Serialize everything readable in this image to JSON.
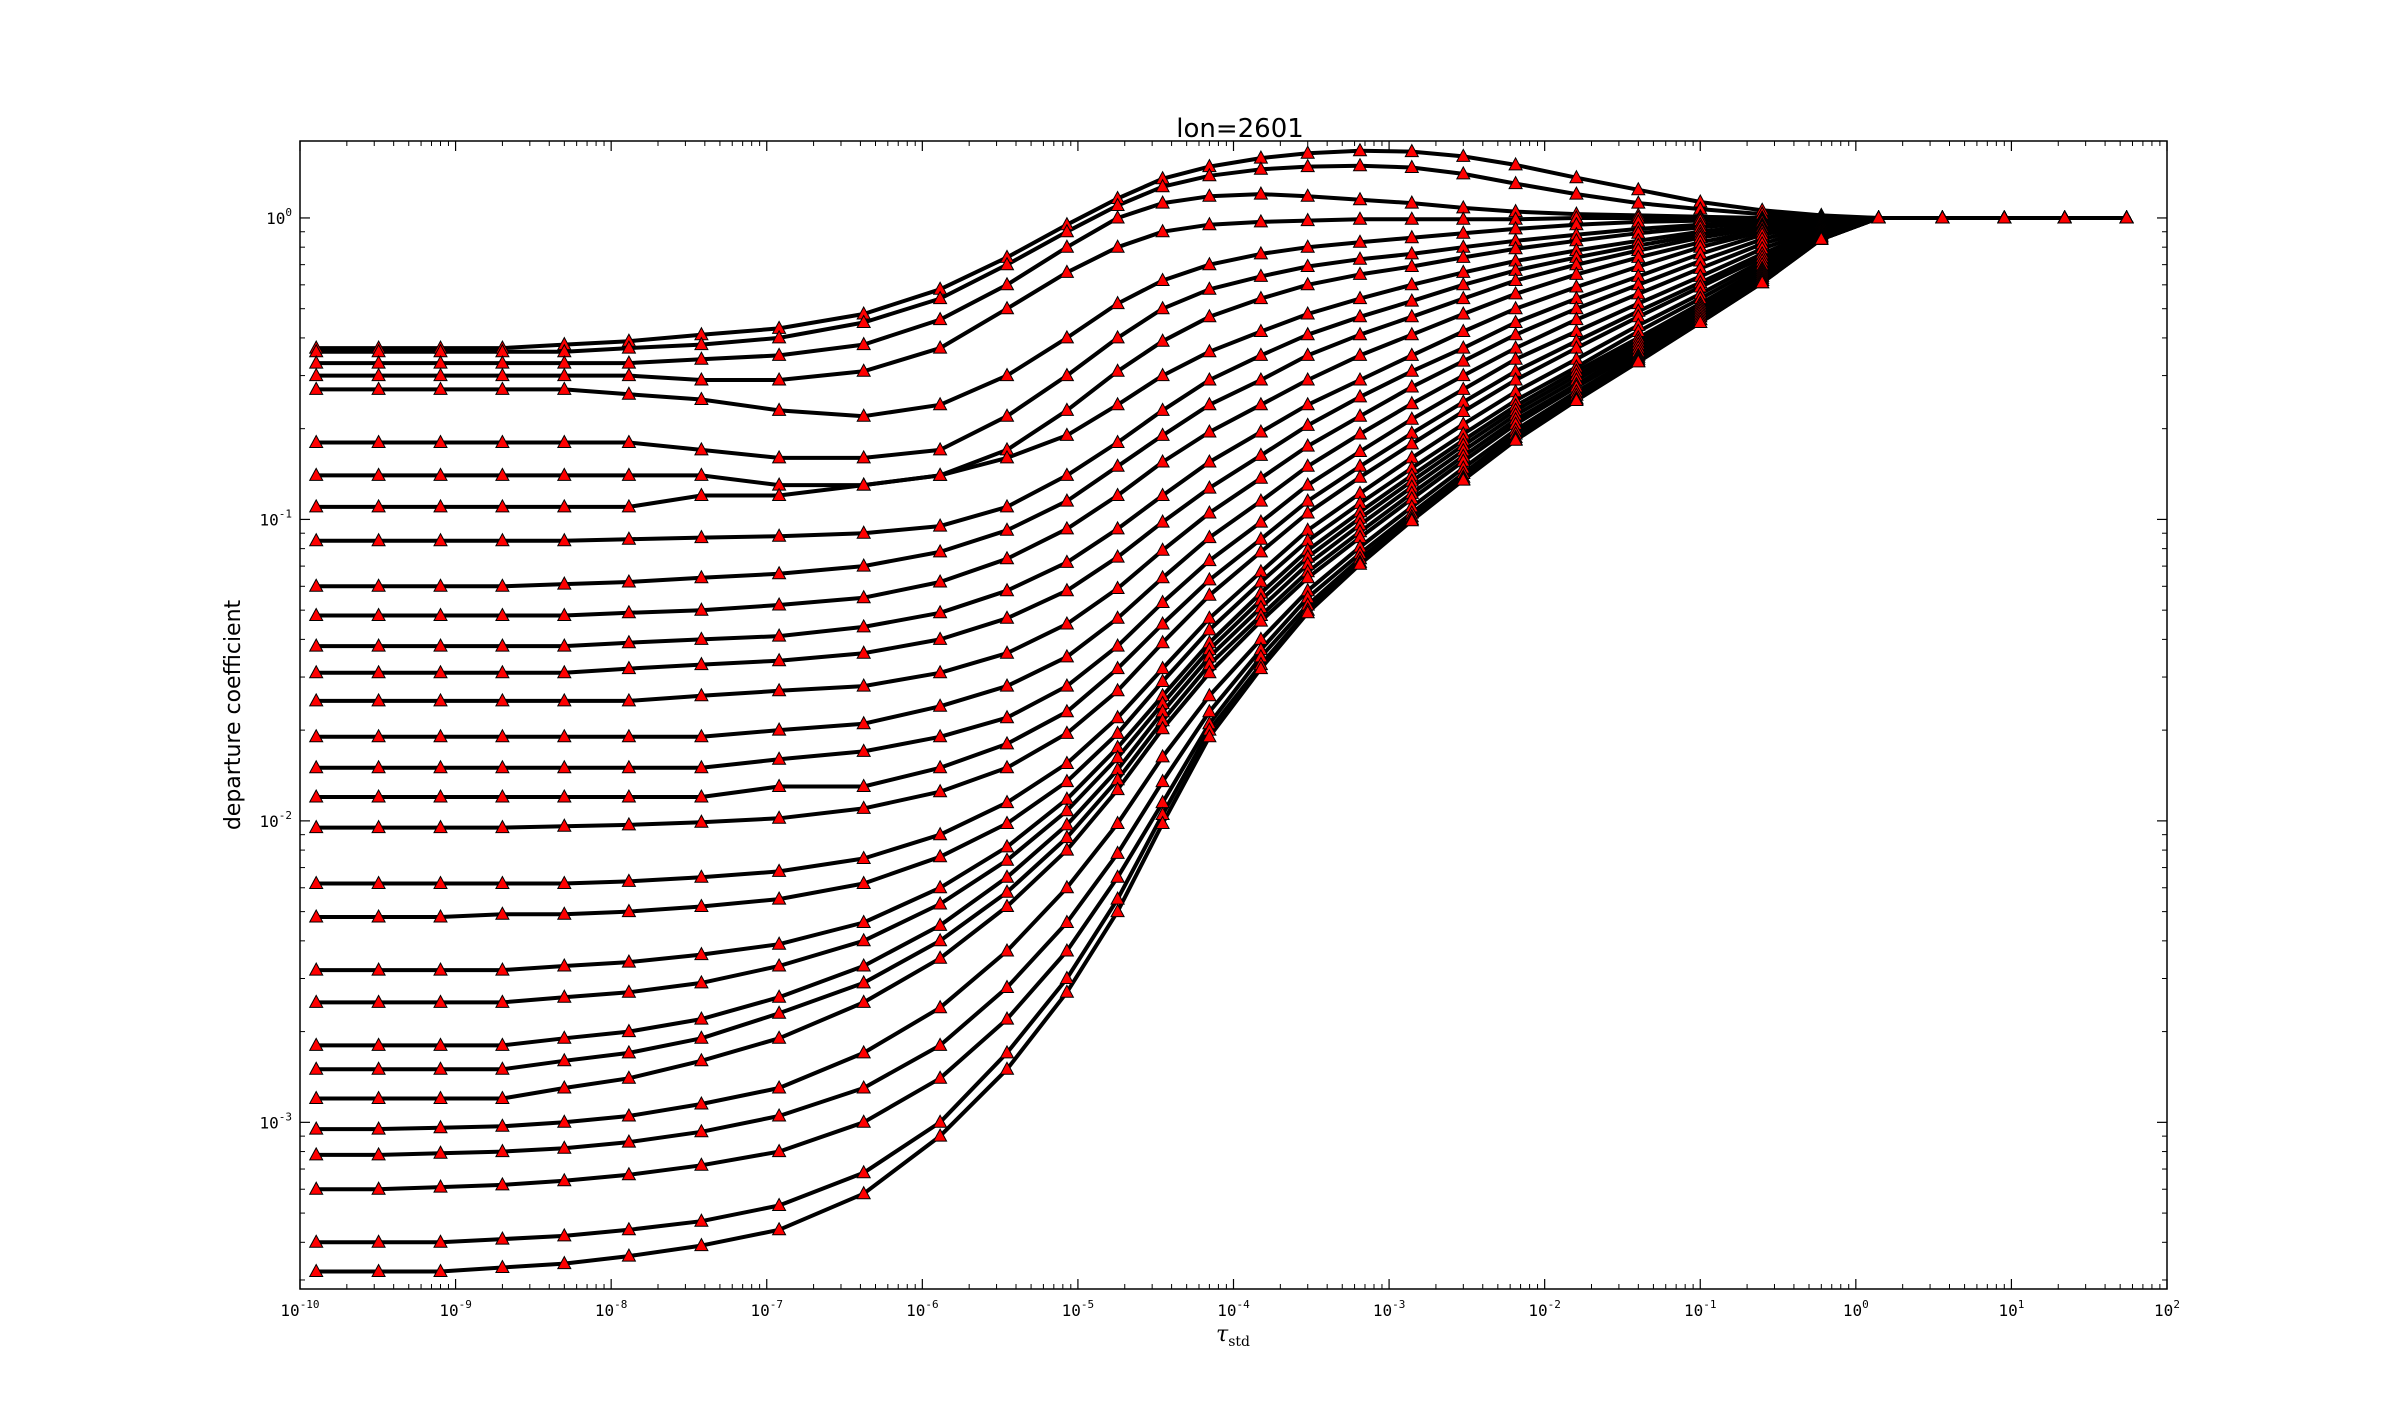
{
  "chart_data": {
    "type": "line",
    "title": "lon=2601",
    "xlabel": "τ",
    "xlabel_subscript": "std",
    "ylabel": "departure coefficient",
    "xscale": "log",
    "yscale": "log",
    "xlim": [
      1e-10,
      100
    ],
    "ylim": [
      0.00028,
      1.8
    ],
    "x_tick_labels": [
      {
        "base": "10",
        "exp": "-10"
      },
      {
        "base": "10",
        "exp": "-9"
      },
      {
        "base": "10",
        "exp": "-8"
      },
      {
        "base": "10",
        "exp": "-7"
      },
      {
        "base": "10",
        "exp": "-6"
      },
      {
        "base": "10",
        "exp": "-5"
      },
      {
        "base": "10",
        "exp": "-4"
      },
      {
        "base": "10",
        "exp": "-3"
      },
      {
        "base": "10",
        "exp": "-2"
      },
      {
        "base": "10",
        "exp": "-1"
      },
      {
        "base": "10",
        "exp": "0"
      },
      {
        "base": "10",
        "exp": "1"
      },
      {
        "base": "10",
        "exp": "2"
      }
    ],
    "y_tick_labels": [
      {
        "base": "10",
        "exp": "-3"
      },
      {
        "base": "10",
        "exp": "-2"
      },
      {
        "base": "10",
        "exp": "-1"
      },
      {
        "base": "10",
        "exp": "0"
      }
    ],
    "line_color": "#000000",
    "marker": "triangle",
    "marker_color": "#ff0000",
    "marker_edge_color": "#000000",
    "x": [
      1.27e-10,
      3.2e-10,
      8e-10,
      2e-09,
      5e-09,
      1.3e-08,
      3.8e-08,
      1.2e-07,
      4.2e-07,
      1.3e-06,
      3.5e-06,
      8.5e-06,
      1.8e-05,
      3.5e-05,
      7e-05,
      0.00015,
      0.0003,
      0.00065,
      0.0014,
      0.003,
      0.0065,
      0.016,
      0.04,
      0.1,
      0.25,
      0.6,
      1.4,
      3.6,
      9,
      22,
      55
    ],
    "series": [
      {
        "values": [
          0.37,
          0.37,
          0.37,
          0.37,
          0.38,
          0.39,
          0.41,
          0.43,
          0.48,
          0.58,
          0.74,
          0.95,
          1.16,
          1.35,
          1.48,
          1.58,
          1.64,
          1.67,
          1.66,
          1.6,
          1.5,
          1.36,
          1.24,
          1.13,
          1.06,
          1.02,
          1.0,
          1.0,
          1.0,
          1.0,
          1.0
        ]
      },
      {
        "values": [
          0.36,
          0.36,
          0.36,
          0.36,
          0.36,
          0.37,
          0.38,
          0.4,
          0.45,
          0.54,
          0.7,
          0.9,
          1.1,
          1.27,
          1.38,
          1.45,
          1.48,
          1.49,
          1.47,
          1.4,
          1.3,
          1.2,
          1.12,
          1.07,
          1.03,
          1.01,
          1.0,
          1.0,
          1.0,
          1.0,
          1.0
        ]
      },
      {
        "values": [
          0.33,
          0.33,
          0.33,
          0.33,
          0.33,
          0.33,
          0.34,
          0.35,
          0.38,
          0.46,
          0.6,
          0.8,
          1.0,
          1.12,
          1.18,
          1.2,
          1.18,
          1.15,
          1.12,
          1.08,
          1.05,
          1.03,
          1.02,
          1.01,
          1.0,
          1.0,
          1.0,
          1.0,
          1.0,
          1.0,
          1.0
        ]
      },
      {
        "values": [
          0.3,
          0.3,
          0.3,
          0.3,
          0.3,
          0.3,
          0.29,
          0.29,
          0.31,
          0.37,
          0.5,
          0.66,
          0.8,
          0.9,
          0.95,
          0.97,
          0.98,
          0.99,
          0.99,
          0.99,
          0.99,
          1.0,
          1.0,
          1.0,
          1.0,
          1.0,
          1.0,
          1.0,
          1.0,
          1.0,
          1.0
        ]
      },
      {
        "values": [
          0.27,
          0.27,
          0.27,
          0.27,
          0.27,
          0.26,
          0.25,
          0.23,
          0.22,
          0.24,
          0.3,
          0.4,
          0.52,
          0.62,
          0.7,
          0.76,
          0.8,
          0.83,
          0.86,
          0.89,
          0.92,
          0.95,
          0.97,
          0.98,
          0.99,
          1.0,
          1.0,
          1.0,
          1.0,
          1.0,
          1.0
        ]
      },
      {
        "values": [
          0.18,
          0.18,
          0.18,
          0.18,
          0.18,
          0.18,
          0.17,
          0.16,
          0.16,
          0.17,
          0.22,
          0.3,
          0.4,
          0.5,
          0.58,
          0.64,
          0.69,
          0.73,
          0.76,
          0.8,
          0.84,
          0.88,
          0.92,
          0.95,
          0.98,
          0.99,
          1.0,
          1.0,
          1.0,
          1.0,
          1.0
        ]
      },
      {
        "values": [
          0.14,
          0.14,
          0.14,
          0.14,
          0.14,
          0.14,
          0.14,
          0.13,
          0.13,
          0.14,
          0.17,
          0.23,
          0.31,
          0.39,
          0.47,
          0.54,
          0.6,
          0.65,
          0.69,
          0.74,
          0.79,
          0.84,
          0.89,
          0.93,
          0.97,
          0.99,
          1.0,
          1.0,
          1.0,
          1.0,
          1.0
        ]
      },
      {
        "values": [
          0.11,
          0.11,
          0.11,
          0.11,
          0.11,
          0.11,
          0.12,
          0.12,
          0.13,
          0.14,
          0.16,
          0.19,
          0.24,
          0.3,
          0.36,
          0.42,
          0.48,
          0.54,
          0.6,
          0.66,
          0.72,
          0.78,
          0.84,
          0.9,
          0.95,
          0.98,
          1.0,
          1.0,
          1.0,
          1.0,
          1.0
        ]
      },
      {
        "values": [
          0.085,
          0.085,
          0.085,
          0.085,
          0.085,
          0.086,
          0.087,
          0.088,
          0.09,
          0.095,
          0.11,
          0.14,
          0.18,
          0.23,
          0.29,
          0.35,
          0.41,
          0.47,
          0.53,
          0.6,
          0.67,
          0.74,
          0.81,
          0.88,
          0.94,
          0.98,
          1.0,
          1.0,
          1.0,
          1.0,
          1.0
        ]
      },
      {
        "values": [
          0.06,
          0.06,
          0.06,
          0.06,
          0.061,
          0.062,
          0.064,
          0.066,
          0.07,
          0.078,
          0.092,
          0.115,
          0.15,
          0.19,
          0.24,
          0.29,
          0.35,
          0.41,
          0.47,
          0.54,
          0.62,
          0.7,
          0.78,
          0.86,
          0.93,
          0.97,
          1.0,
          1.0,
          1.0,
          1.0,
          1.0
        ]
      },
      {
        "values": [
          0.048,
          0.048,
          0.048,
          0.048,
          0.048,
          0.049,
          0.05,
          0.052,
          0.055,
          0.062,
          0.074,
          0.093,
          0.12,
          0.155,
          0.195,
          0.24,
          0.29,
          0.35,
          0.41,
          0.48,
          0.56,
          0.65,
          0.74,
          0.83,
          0.91,
          0.97,
          1.0,
          1.0,
          1.0,
          1.0,
          1.0
        ]
      },
      {
        "values": [
          0.038,
          0.038,
          0.038,
          0.038,
          0.038,
          0.039,
          0.04,
          0.041,
          0.044,
          0.049,
          0.058,
          0.072,
          0.093,
          0.12,
          0.155,
          0.195,
          0.24,
          0.29,
          0.35,
          0.42,
          0.5,
          0.59,
          0.69,
          0.8,
          0.9,
          0.96,
          1.0,
          1.0,
          1.0,
          1.0,
          1.0
        ]
      },
      {
        "values": [
          0.031,
          0.031,
          0.031,
          0.031,
          0.031,
          0.032,
          0.033,
          0.034,
          0.036,
          0.04,
          0.047,
          0.058,
          0.075,
          0.098,
          0.127,
          0.163,
          0.205,
          0.255,
          0.31,
          0.37,
          0.45,
          0.54,
          0.64,
          0.76,
          0.88,
          0.96,
          1.0,
          1.0,
          1.0,
          1.0,
          1.0
        ]
      },
      {
        "values": [
          0.025,
          0.025,
          0.025,
          0.025,
          0.025,
          0.025,
          0.026,
          0.027,
          0.028,
          0.031,
          0.036,
          0.045,
          0.059,
          0.079,
          0.105,
          0.137,
          0.175,
          0.22,
          0.275,
          0.335,
          0.41,
          0.5,
          0.6,
          0.72,
          0.85,
          0.95,
          1.0,
          1.0,
          1.0,
          1.0,
          1.0
        ]
      },
      {
        "values": [
          0.019,
          0.019,
          0.019,
          0.019,
          0.019,
          0.019,
          0.019,
          0.02,
          0.021,
          0.024,
          0.028,
          0.035,
          0.047,
          0.064,
          0.087,
          0.115,
          0.15,
          0.192,
          0.242,
          0.3,
          0.37,
          0.46,
          0.56,
          0.68,
          0.82,
          0.94,
          1.0,
          1.0,
          1.0,
          1.0,
          1.0
        ]
      },
      {
        "values": [
          0.015,
          0.015,
          0.015,
          0.015,
          0.015,
          0.015,
          0.015,
          0.016,
          0.017,
          0.019,
          0.022,
          0.028,
          0.038,
          0.053,
          0.073,
          0.098,
          0.13,
          0.168,
          0.215,
          0.27,
          0.34,
          0.42,
          0.52,
          0.64,
          0.79,
          0.93,
          1.0,
          1.0,
          1.0,
          1.0,
          1.0
        ]
      },
      {
        "values": [
          0.012,
          0.012,
          0.012,
          0.012,
          0.012,
          0.012,
          0.012,
          0.013,
          0.013,
          0.015,
          0.018,
          0.023,
          0.032,
          0.045,
          0.063,
          0.086,
          0.115,
          0.15,
          0.193,
          0.245,
          0.31,
          0.39,
          0.49,
          0.61,
          0.76,
          0.92,
          1.0,
          1.0,
          1.0,
          1.0,
          1.0
        ]
      },
      {
        "values": [
          0.0095,
          0.0095,
          0.0095,
          0.0095,
          0.0096,
          0.0097,
          0.0099,
          0.0102,
          0.011,
          0.0125,
          0.015,
          0.0195,
          0.027,
          0.039,
          0.056,
          0.078,
          0.105,
          0.138,
          0.178,
          0.228,
          0.29,
          0.37,
          0.47,
          0.59,
          0.74,
          0.91,
          1.0,
          1.0,
          1.0,
          1.0,
          1.0
        ]
      },
      {
        "values": [
          0.0062,
          0.0062,
          0.0062,
          0.0062,
          0.0062,
          0.0063,
          0.0065,
          0.0068,
          0.0075,
          0.009,
          0.0115,
          0.0155,
          0.022,
          0.032,
          0.047,
          0.067,
          0.092,
          0.122,
          0.16,
          0.207,
          0.265,
          0.34,
          0.44,
          0.56,
          0.72,
          0.9,
          1.0,
          1.0,
          1.0,
          1.0,
          1.0
        ]
      },
      {
        "values": [
          0.0048,
          0.0048,
          0.0048,
          0.0049,
          0.0049,
          0.005,
          0.0052,
          0.0055,
          0.0062,
          0.0076,
          0.0098,
          0.0135,
          0.0195,
          0.029,
          0.043,
          0.062,
          0.085,
          0.113,
          0.148,
          0.192,
          0.248,
          0.32,
          0.42,
          0.54,
          0.7,
          0.89,
          1.0,
          1.0,
          1.0,
          1.0,
          1.0
        ]
      },
      {
        "values": [
          0.0032,
          0.0032,
          0.0032,
          0.0032,
          0.0033,
          0.0034,
          0.0036,
          0.0039,
          0.0046,
          0.006,
          0.0082,
          0.0118,
          0.0175,
          0.026,
          0.039,
          0.057,
          0.079,
          0.106,
          0.14,
          0.183,
          0.238,
          0.31,
          0.4,
          0.52,
          0.68,
          0.88,
          1.0,
          1.0,
          1.0,
          1.0,
          1.0
        ]
      },
      {
        "values": [
          0.0025,
          0.0025,
          0.0025,
          0.0025,
          0.0026,
          0.0027,
          0.0029,
          0.0033,
          0.004,
          0.0053,
          0.0074,
          0.0108,
          0.0162,
          0.0245,
          0.037,
          0.054,
          0.075,
          0.101,
          0.134,
          0.176,
          0.23,
          0.3,
          0.39,
          0.51,
          0.67,
          0.87,
          1.0,
          1.0,
          1.0,
          1.0,
          1.0
        ]
      },
      {
        "values": [
          0.0018,
          0.0018,
          0.0018,
          0.0018,
          0.0019,
          0.002,
          0.0022,
          0.0026,
          0.0033,
          0.0045,
          0.0065,
          0.0097,
          0.0148,
          0.023,
          0.035,
          0.051,
          0.071,
          0.096,
          0.128,
          0.169,
          0.222,
          0.29,
          0.38,
          0.5,
          0.66,
          0.87,
          1.0,
          1.0,
          1.0,
          1.0,
          1.0
        ]
      },
      {
        "values": [
          0.0015,
          0.0015,
          0.0015,
          0.0015,
          0.0016,
          0.0017,
          0.0019,
          0.0023,
          0.0029,
          0.004,
          0.0058,
          0.0088,
          0.0137,
          0.0215,
          0.033,
          0.048,
          0.067,
          0.091,
          0.122,
          0.162,
          0.214,
          0.28,
          0.37,
          0.49,
          0.65,
          0.86,
          1.0,
          1.0,
          1.0,
          1.0,
          1.0
        ]
      },
      {
        "values": [
          0.0012,
          0.0012,
          0.0012,
          0.0012,
          0.0013,
          0.0014,
          0.0016,
          0.0019,
          0.0025,
          0.0035,
          0.0052,
          0.008,
          0.0127,
          0.0202,
          0.031,
          0.046,
          0.064,
          0.087,
          0.117,
          0.156,
          0.207,
          0.275,
          0.36,
          0.48,
          0.64,
          0.86,
          1.0,
          1.0,
          1.0,
          1.0,
          1.0
        ]
      },
      {
        "values": [
          0.00095,
          0.00095,
          0.00096,
          0.00097,
          0.001,
          0.00105,
          0.00115,
          0.0013,
          0.0017,
          0.0024,
          0.0037,
          0.006,
          0.0098,
          0.0163,
          0.026,
          0.04,
          0.058,
          0.081,
          0.11,
          0.148,
          0.198,
          0.265,
          0.35,
          0.47,
          0.63,
          0.85,
          1.0,
          1.0,
          1.0,
          1.0,
          1.0
        ]
      },
      {
        "values": [
          0.00078,
          0.00078,
          0.00079,
          0.0008,
          0.00082,
          0.00086,
          0.00093,
          0.00105,
          0.0013,
          0.0018,
          0.0028,
          0.0046,
          0.0078,
          0.0135,
          0.023,
          0.037,
          0.055,
          0.077,
          0.105,
          0.142,
          0.192,
          0.258,
          0.345,
          0.46,
          0.62,
          0.85,
          1.0,
          1.0,
          1.0,
          1.0,
          1.0
        ]
      },
      {
        "values": [
          0.0006,
          0.0006,
          0.00061,
          0.00062,
          0.00064,
          0.00067,
          0.00072,
          0.0008,
          0.001,
          0.0014,
          0.0022,
          0.0037,
          0.0065,
          0.0115,
          0.021,
          0.035,
          0.052,
          0.074,
          0.102,
          0.138,
          0.187,
          0.252,
          0.34,
          0.46,
          0.62,
          0.85,
          1.0,
          1.0,
          1.0,
          1.0,
          1.0
        ]
      },
      {
        "values": [
          0.0004,
          0.0004,
          0.0004,
          0.00041,
          0.00042,
          0.00044,
          0.00047,
          0.00053,
          0.00068,
          0.001,
          0.0017,
          0.003,
          0.0055,
          0.0105,
          0.02,
          0.033,
          0.05,
          0.072,
          0.1,
          0.136,
          0.184,
          0.25,
          0.335,
          0.45,
          0.61,
          0.85,
          1.0,
          1.0,
          1.0,
          1.0,
          1.0
        ]
      },
      {
        "values": [
          0.00032,
          0.00032,
          0.00032,
          0.00033,
          0.00034,
          0.00036,
          0.00039,
          0.00044,
          0.00058,
          0.0009,
          0.0015,
          0.0027,
          0.005,
          0.0098,
          0.019,
          0.032,
          0.049,
          0.071,
          0.099,
          0.135,
          0.183,
          0.248,
          0.333,
          0.45,
          0.61,
          0.85,
          1.0,
          1.0,
          1.0,
          1.0,
          1.0
        ]
      }
    ]
  }
}
